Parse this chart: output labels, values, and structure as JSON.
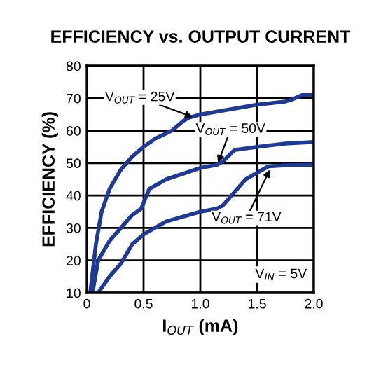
{
  "chart_data": {
    "type": "line",
    "title": "EFFICIENCY vs. OUTPUT CURRENT",
    "xlabel": "I$_{OUT}$ (mA)",
    "ylabel": "EFFICIENCY (%)",
    "xlim": [
      0,
      2.0
    ],
    "xticks": [
      0,
      0.5,
      {
        "value": 1.0,
        "label": "1.0"
      },
      1.5,
      {
        "value": 2.0,
        "label": "2.0"
      }
    ],
    "ylim": [
      10,
      80
    ],
    "yticks": [
      10,
      20,
      30,
      40,
      50,
      60,
      70,
      80
    ],
    "grid": true,
    "line_style": "solid",
    "series": [
      {
        "color": "#1f3a93",
        "x": [
          0.03,
          0.08,
          0.13,
          0.2,
          0.3,
          0.4,
          0.5,
          0.6,
          0.75,
          0.85,
          0.9,
          1.0,
          1.25,
          1.5,
          1.75,
          1.8,
          1.9,
          2.0
        ],
        "values": [
          10,
          25,
          35,
          42,
          48,
          52,
          55,
          57.5,
          60,
          63,
          64,
          65,
          66.5,
          68,
          69,
          69.5,
          71,
          71
        ]
      },
      {
        "color": "#1f3a93",
        "x": [
          0.05,
          0.1,
          0.2,
          0.3,
          0.4,
          0.48,
          0.55,
          0.7,
          1.0,
          1.15,
          1.2,
          1.3,
          1.5,
          1.75,
          2.0
        ],
        "values": [
          10,
          20,
          26,
          30,
          34,
          36,
          42,
          45,
          48.5,
          49.5,
          50.5,
          54,
          55,
          56,
          56.5
        ]
      },
      {
        "color": "#1f3a93",
        "x": [
          0.1,
          0.2,
          0.3,
          0.4,
          0.5,
          0.7,
          1.0,
          1.15,
          1.2,
          1.3,
          1.4,
          1.5,
          1.6,
          1.75,
          2.0
        ],
        "values": [
          10,
          15,
          19,
          25,
          28,
          32,
          35,
          36,
          37,
          41,
          45,
          47,
          49,
          49.3,
          49.5
        ]
      }
    ],
    "annotations": [
      {
        "text": "V$_{OUT}$ = 25V",
        "x": 0.95,
        "y": 64
      },
      {
        "text": "V$_{OUT}$ = 50V",
        "x": 1.15,
        "y": 49.5
      },
      {
        "text": "V$_{OUT}$ = 71V",
        "x": 1.62,
        "y": 48.5
      },
      "V$_{IN}$ = 5V"
    ]
  }
}
